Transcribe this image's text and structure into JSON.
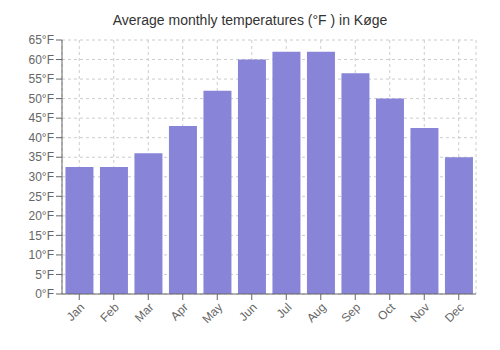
{
  "chart_data": {
    "type": "bar",
    "title": "Average monthly temperatures (°F ) in Køge",
    "categories": [
      "Jan",
      "Feb",
      "Mar",
      "Apr",
      "May",
      "Jun",
      "Jul",
      "Aug",
      "Sep",
      "Oct",
      "Nov",
      "Dec"
    ],
    "values": [
      32.5,
      32.5,
      36,
      43,
      52,
      60,
      62,
      62,
      56.5,
      50,
      42.5,
      35
    ],
    "ylim": [
      0,
      65
    ],
    "yticks": [
      {
        "value": 0,
        "label": "0°F"
      },
      {
        "value": 5,
        "label": "5°F"
      },
      {
        "value": 10,
        "label": "10°F"
      },
      {
        "value": 15,
        "label": "15°F"
      },
      {
        "value": 20,
        "label": "20°F"
      },
      {
        "value": 25,
        "label": "25°F"
      },
      {
        "value": 30,
        "label": "30°F"
      },
      {
        "value": 35,
        "label": "35°F"
      },
      {
        "value": 40,
        "label": "40°F"
      },
      {
        "value": 45,
        "label": "45°F"
      },
      {
        "value": 50,
        "label": "50°F"
      },
      {
        "value": 55,
        "label": "55°F"
      },
      {
        "value": 60,
        "label": "60°F"
      },
      {
        "value": 65,
        "label": "65°F"
      }
    ],
    "grid": true
  }
}
